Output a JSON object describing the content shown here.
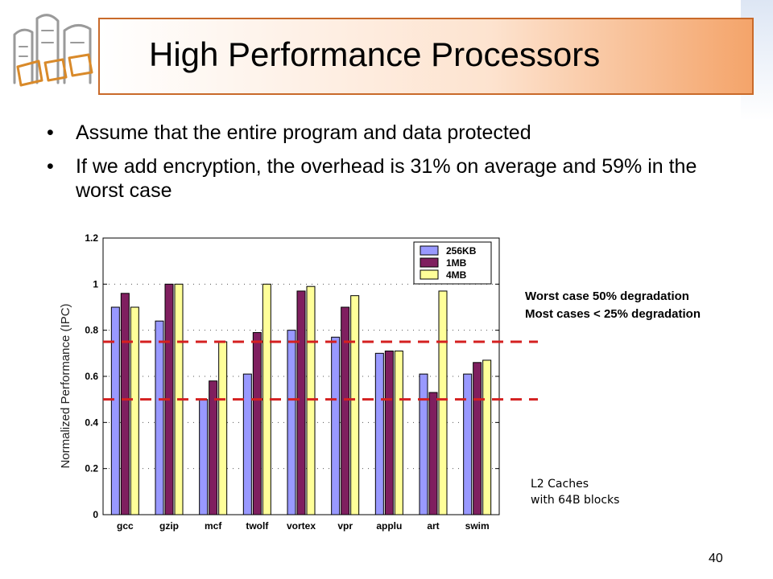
{
  "title": "High Performance Processors",
  "bullets": [
    "Assume that the entire program and data protected",
    "If we add encryption, the overhead is 31% on average and 59% in the worst case"
  ],
  "bullet_glyph": "•",
  "notes": {
    "degradation_line1": "Worst case 50% degradation",
    "degradation_line2": "Most cases < 25% degradation",
    "cache_line1": "L2 Caches",
    "cache_line2": "with 64B blocks"
  },
  "page_number": "40",
  "colors": {
    "series_256kb": "#9999ff",
    "series_1mb": "#7f1f5f",
    "series_4mb": "#ffff99",
    "reference_lines": "#d42020",
    "title_border": "#c96a2a"
  },
  "chart_data": {
    "type": "bar",
    "ylabel": "Normalized Performance (IPC)",
    "xlabel": "",
    "ylim": [
      0,
      1.2
    ],
    "yticks": [
      "0",
      "0.2",
      "0.4",
      "0.6",
      "0.8",
      "1",
      "1.2"
    ],
    "grid": "dotted horizontal",
    "legend_position": "top-right",
    "categories": [
      "gcc",
      "gzip",
      "mcf",
      "twolf",
      "vortex",
      "vpr",
      "applu",
      "art",
      "swim"
    ],
    "series": [
      {
        "name": "256KB",
        "values": [
          0.9,
          0.84,
          0.5,
          0.61,
          0.8,
          0.77,
          0.7,
          0.61,
          0.61
        ]
      },
      {
        "name": "1MB",
        "values": [
          0.96,
          1.0,
          0.58,
          0.79,
          0.97,
          0.9,
          0.71,
          0.53,
          0.66
        ]
      },
      {
        "name": "4MB",
        "values": [
          0.9,
          1.0,
          0.75,
          1.0,
          0.99,
          0.95,
          0.71,
          0.97,
          0.67
        ]
      }
    ],
    "reference_lines": [
      0.75,
      0.5
    ]
  }
}
